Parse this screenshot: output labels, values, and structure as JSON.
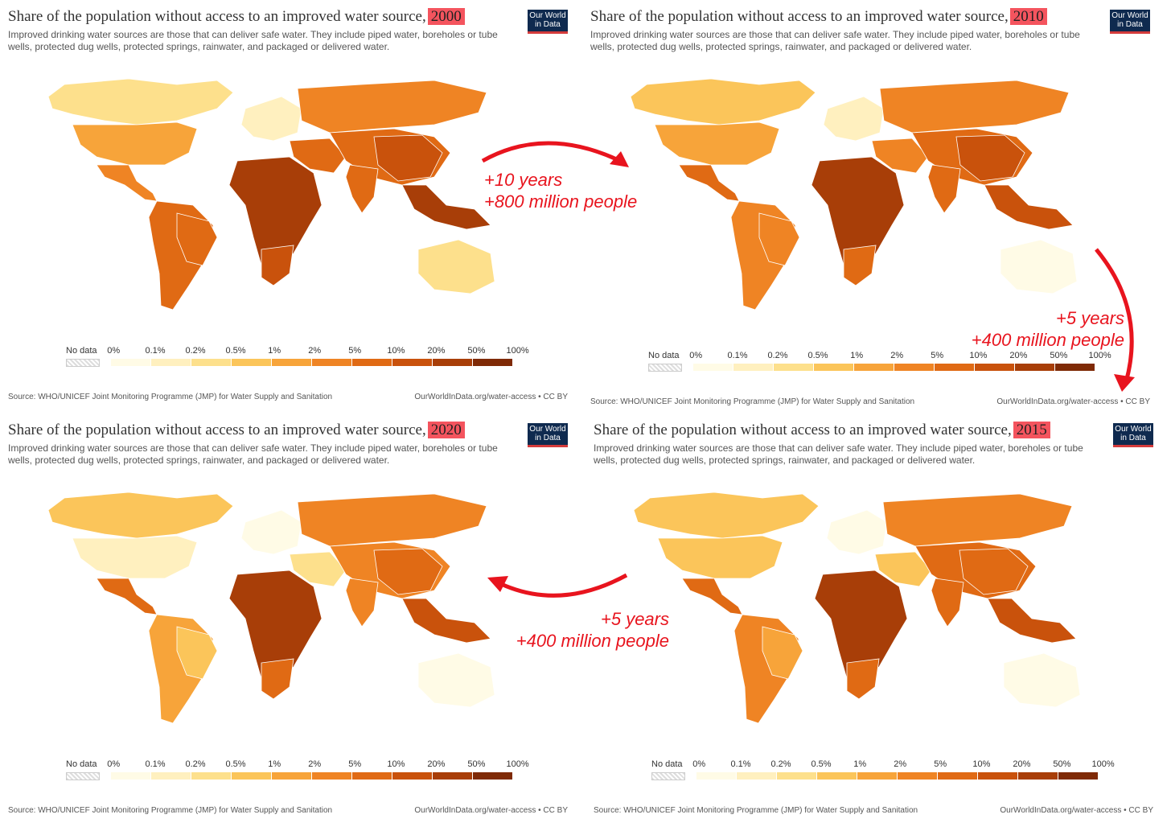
{
  "title_prefix": "Share of the population without access to an improved water source,",
  "subtitle": "Improved drinking water sources are those that can deliver safe water. They include piped water, boreholes or tube wells, protected dug wells, protected springs, rainwater, and packaged or delivered water.",
  "logo": "Our World in Data",
  "source": "Source: WHO/UNICEF Joint Monitoring Programme (JMP) for Water Supply and Sanitation",
  "url": "OurWorldInData.org/water-access • CC BY",
  "legend": {
    "no_data": "No data",
    "ticks": [
      "0%",
      "0.1%",
      "0.2%",
      "0.5%",
      "1%",
      "2%",
      "5%",
      "10%",
      "20%",
      "50%",
      "100%"
    ],
    "colors": [
      "#fffbe6",
      "#fff0bf",
      "#fde08c",
      "#fbc55a",
      "#f7a43a",
      "#ef8424",
      "#e06a14",
      "#c9520c",
      "#a83e08",
      "#7f2a06"
    ]
  },
  "panels": [
    {
      "year": "2000"
    },
    {
      "year": "2010"
    },
    {
      "year": "2020"
    },
    {
      "year": "2015"
    }
  ],
  "annotations": {
    "a1_line1": "+10 years",
    "a1_line2": "+800 million people",
    "a2_line1": "+5 years",
    "a2_line2": "+400 million people",
    "a3_line1": "+5 years",
    "a3_line2": "+400 million people"
  },
  "colors": {
    "accent": "#e8141e",
    "year_highlight": "#f4545e"
  }
}
